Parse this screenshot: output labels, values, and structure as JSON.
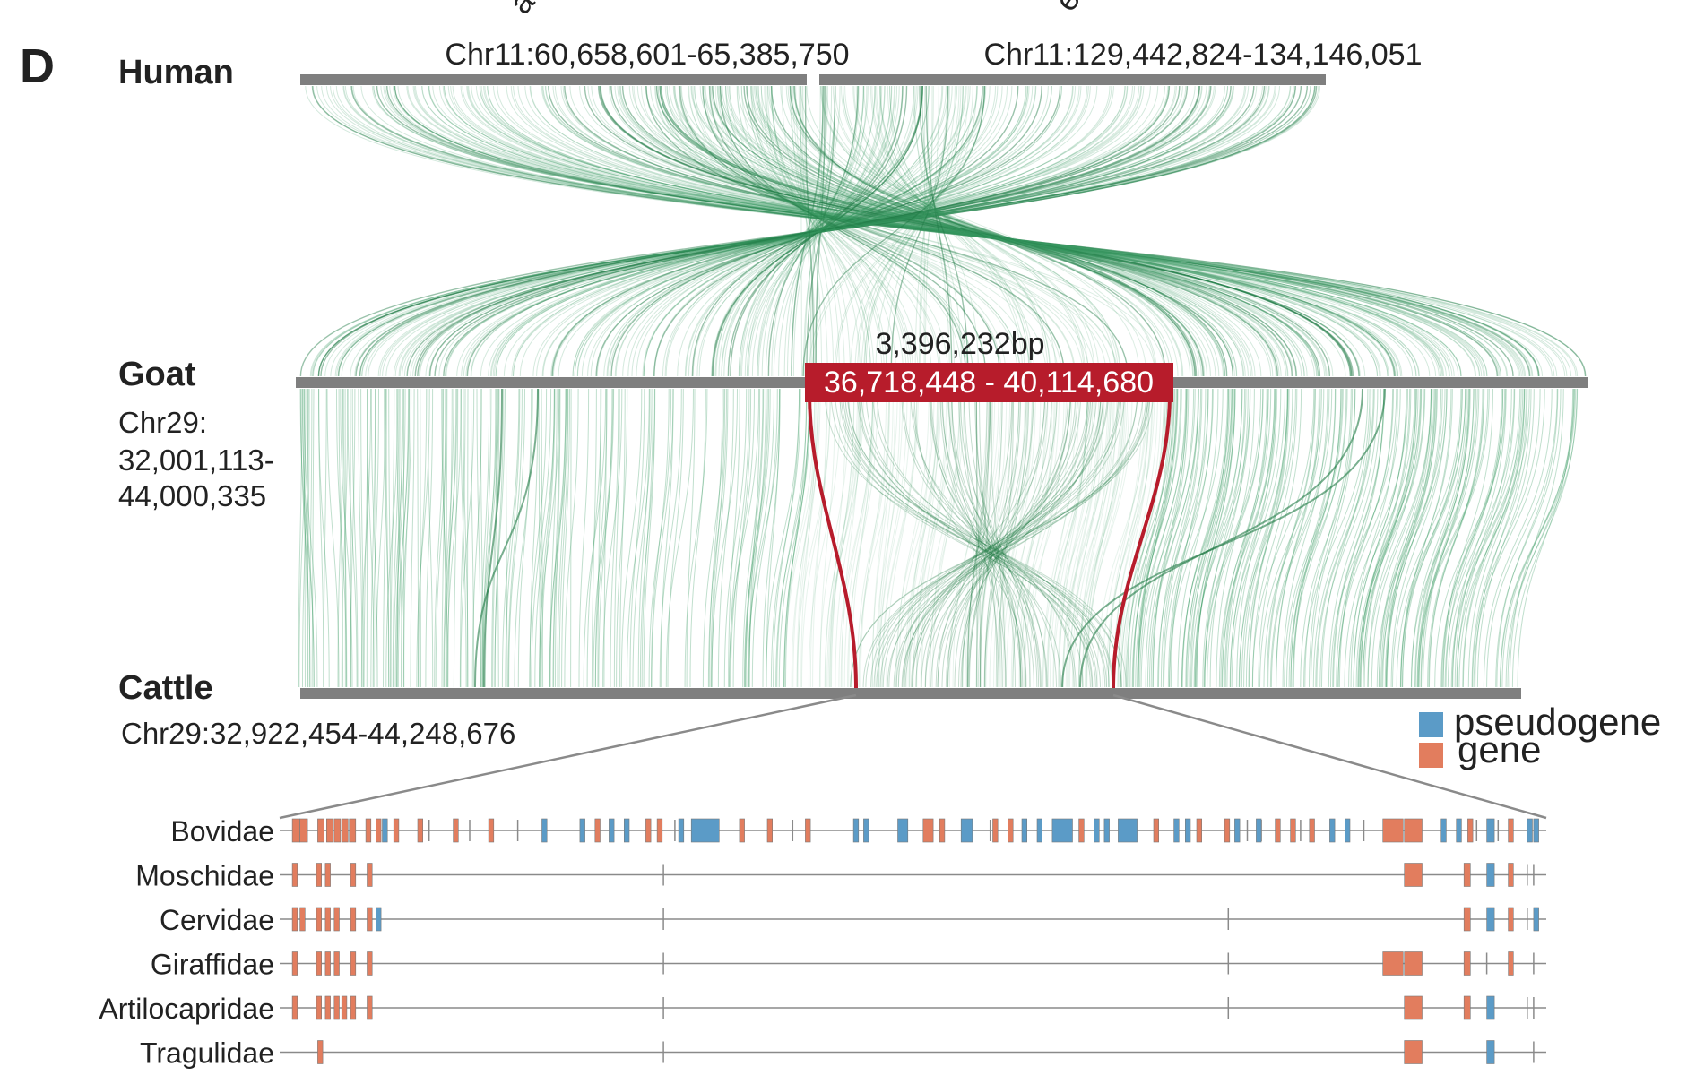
{
  "panel_letter": "D",
  "colors": {
    "track": "#7f7f7f",
    "synteny": "#3c9a63",
    "synteny_dark": "#1f7a44",
    "highlight": "#b71c2b",
    "gene": "#e27d5e",
    "pseudogene": "#5b9bc7",
    "line": "#8a8a8a"
  },
  "human": {
    "label": "Human",
    "regions": [
      "Chr11:60,658,601-65,385,750",
      "Chr11:129,442,824-134,146,051"
    ],
    "cut_labels": [
      "a",
      "e"
    ]
  },
  "goat": {
    "label": "Goat",
    "coord_lines": [
      "Chr29:",
      "32,001,113-",
      "44,000,335"
    ],
    "highlight_size": "3,396,232bp",
    "highlight_range": "36,718,448 - 40,114,680"
  },
  "cattle": {
    "label": "Cattle",
    "coord": "Chr29:32,922,454-44,248,676"
  },
  "legend": [
    {
      "label": "pseudogene",
      "type": "pseudogene"
    },
    {
      "label": "gene",
      "type": "gene"
    }
  ],
  "families": [
    {
      "name": "Bovidae",
      "features": [
        [
          0.01,
          0.006,
          "g"
        ],
        [
          0.016,
          0.006,
          "g"
        ],
        [
          0.03,
          0.005,
          "g"
        ],
        [
          0.037,
          0.005,
          "g"
        ],
        [
          0.043,
          0.005,
          "g"
        ],
        [
          0.049,
          0.005,
          "g"
        ],
        [
          0.055,
          0.005,
          "g"
        ],
        [
          0.068,
          0.004,
          "g"
        ],
        [
          0.076,
          0.004,
          "g"
        ],
        [
          0.081,
          0.004,
          "p"
        ],
        [
          0.09,
          0.004,
          "g"
        ],
        [
          0.109,
          0.004,
          "g"
        ],
        [
          0.137,
          0.004,
          "g"
        ],
        [
          0.165,
          0.004,
          "g"
        ],
        [
          0.207,
          0.004,
          "p"
        ],
        [
          0.237,
          0.004,
          "p"
        ],
        [
          0.249,
          0.004,
          "g"
        ],
        [
          0.26,
          0.004,
          "p"
        ],
        [
          0.272,
          0.004,
          "p"
        ],
        [
          0.289,
          0.004,
          "g"
        ],
        [
          0.298,
          0.004,
          "g"
        ],
        [
          0.315,
          0.004,
          "p"
        ],
        [
          0.325,
          0.022,
          "p"
        ],
        [
          0.363,
          0.004,
          "g"
        ],
        [
          0.385,
          0.004,
          "g"
        ],
        [
          0.415,
          0.004,
          "g"
        ],
        [
          0.453,
          0.004,
          "p"
        ],
        [
          0.461,
          0.004,
          "p"
        ],
        [
          0.488,
          0.008,
          "p"
        ],
        [
          0.508,
          0.008,
          "g"
        ],
        [
          0.521,
          0.004,
          "g"
        ],
        [
          0.538,
          0.009,
          "p"
        ],
        [
          0.563,
          0.004,
          "g"
        ],
        [
          0.575,
          0.004,
          "g"
        ],
        [
          0.586,
          0.004,
          "p"
        ],
        [
          0.598,
          0.004,
          "p"
        ],
        [
          0.61,
          0.016,
          "p"
        ],
        [
          0.631,
          0.004,
          "g"
        ],
        [
          0.643,
          0.004,
          "p"
        ],
        [
          0.651,
          0.004,
          "p"
        ],
        [
          0.662,
          0.015,
          "p"
        ],
        [
          0.69,
          0.004,
          "g"
        ],
        [
          0.706,
          0.004,
          "p"
        ],
        [
          0.715,
          0.004,
          "p"
        ],
        [
          0.724,
          0.004,
          "g"
        ],
        [
          0.746,
          0.004,
          "g"
        ],
        [
          0.754,
          0.004,
          "p"
        ],
        [
          0.771,
          0.004,
          "p"
        ],
        [
          0.786,
          0.004,
          "g"
        ],
        [
          0.798,
          0.004,
          "g"
        ],
        [
          0.813,
          0.004,
          "g"
        ],
        [
          0.829,
          0.004,
          "p"
        ],
        [
          0.841,
          0.004,
          "p"
        ],
        [
          0.871,
          0.016,
          "g"
        ],
        [
          0.888,
          0.014,
          "g"
        ],
        [
          0.917,
          0.004,
          "p"
        ],
        [
          0.929,
          0.004,
          "p"
        ],
        [
          0.938,
          0.004,
          "g"
        ],
        [
          0.953,
          0.006,
          "p"
        ],
        [
          0.97,
          0.004,
          "g"
        ],
        [
          0.985,
          0.004,
          "p"
        ],
        [
          0.99,
          0.004,
          "p"
        ]
      ],
      "ticks": [
        0.118,
        0.15,
        0.188,
        0.312,
        0.405,
        0.493,
        0.561,
        0.764,
        0.775,
        0.806,
        0.856,
        0.898,
        0.945,
        0.962
      ]
    },
    {
      "name": "Moschidae",
      "features": [
        [
          0.01,
          0.004,
          "g"
        ],
        [
          0.029,
          0.004,
          "g"
        ],
        [
          0.036,
          0.004,
          "g"
        ],
        [
          0.056,
          0.004,
          "g"
        ],
        [
          0.069,
          0.004,
          "g"
        ],
        [
          0.888,
          0.014,
          "g"
        ],
        [
          0.935,
          0.005,
          "g"
        ],
        [
          0.953,
          0.006,
          "p"
        ],
        [
          0.97,
          0.004,
          "g"
        ]
      ],
      "ticks": [
        0.303,
        0.985,
        0.99
      ]
    },
    {
      "name": "Cervidae",
      "features": [
        [
          0.01,
          0.004,
          "g"
        ],
        [
          0.016,
          0.004,
          "g"
        ],
        [
          0.029,
          0.004,
          "g"
        ],
        [
          0.036,
          0.004,
          "g"
        ],
        [
          0.043,
          0.004,
          "g"
        ],
        [
          0.056,
          0.004,
          "g"
        ],
        [
          0.069,
          0.004,
          "g"
        ],
        [
          0.076,
          0.004,
          "p"
        ],
        [
          0.935,
          0.005,
          "g"
        ],
        [
          0.953,
          0.006,
          "p"
        ],
        [
          0.97,
          0.004,
          "g"
        ],
        [
          0.99,
          0.004,
          "p"
        ]
      ],
      "ticks": [
        0.303,
        0.749,
        0.985
      ]
    },
    {
      "name": "Giraffidae",
      "features": [
        [
          0.01,
          0.004,
          "g"
        ],
        [
          0.029,
          0.004,
          "g"
        ],
        [
          0.036,
          0.004,
          "g"
        ],
        [
          0.043,
          0.004,
          "g"
        ],
        [
          0.056,
          0.004,
          "g"
        ],
        [
          0.069,
          0.004,
          "g"
        ],
        [
          0.871,
          0.016,
          "g"
        ],
        [
          0.888,
          0.014,
          "g"
        ],
        [
          0.935,
          0.005,
          "g"
        ],
        [
          0.97,
          0.004,
          "g"
        ]
      ],
      "ticks": [
        0.303,
        0.749,
        0.953,
        0.99
      ]
    },
    {
      "name": "Artilocapridae",
      "features": [
        [
          0.01,
          0.004,
          "g"
        ],
        [
          0.029,
          0.004,
          "g"
        ],
        [
          0.036,
          0.004,
          "g"
        ],
        [
          0.043,
          0.004,
          "g"
        ],
        [
          0.049,
          0.004,
          "g"
        ],
        [
          0.056,
          0.004,
          "g"
        ],
        [
          0.069,
          0.004,
          "g"
        ],
        [
          0.888,
          0.014,
          "g"
        ],
        [
          0.935,
          0.005,
          "g"
        ],
        [
          0.953,
          0.006,
          "p"
        ]
      ],
      "ticks": [
        0.303,
        0.749,
        0.985,
        0.99
      ]
    },
    {
      "name": "Tragulidae",
      "features": [
        [
          0.03,
          0.004,
          "g"
        ],
        [
          0.888,
          0.014,
          "g"
        ],
        [
          0.953,
          0.006,
          "p"
        ]
      ],
      "ticks": [
        0.303,
        0.99
      ]
    }
  ]
}
